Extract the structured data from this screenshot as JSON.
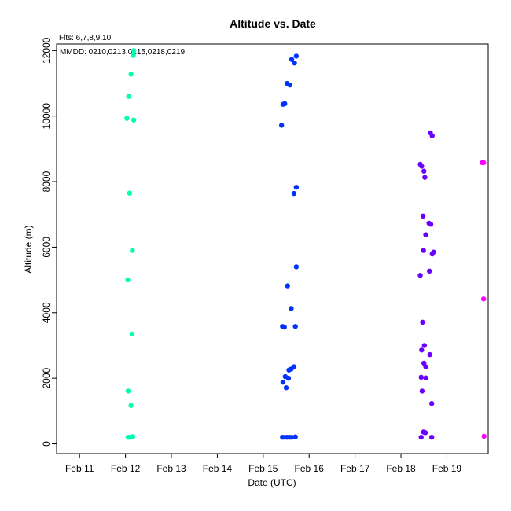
{
  "chart_data": {
    "type": "scatter",
    "title": "Altitude  vs. Date",
    "subtitle_flts": "Flts: 6,7,8,9,10",
    "annotation_mmdd": "MMDD: 0210,0213,0215,0218,0219",
    "xlabel": "Date (UTC)",
    "ylabel": "Altitude (m)",
    "x_unit": "days since Feb 11 00:00 UTC",
    "xlim": [
      -0.5,
      8.9
    ],
    "ylim": [
      -300,
      12200
    ],
    "x_ticks": [
      {
        "label": "Feb 11",
        "value": 0
      },
      {
        "label": "Feb 12",
        "value": 1
      },
      {
        "label": "Feb 13",
        "value": 2
      },
      {
        "label": "Feb 14",
        "value": 3
      },
      {
        "label": "Feb 15",
        "value": 4
      },
      {
        "label": "Feb 16",
        "value": 5
      },
      {
        "label": "Feb 17",
        "value": 6
      },
      {
        "label": "Feb 18",
        "value": 7
      },
      {
        "label": "Feb 19",
        "value": 8
      }
    ],
    "y_ticks": [
      0,
      2000,
      4000,
      6000,
      8000,
      10000,
      12000
    ],
    "grid": false,
    "legend": "none",
    "series": [
      {
        "color": "#00ffb0",
        "points": [
          [
            1.18,
            12000
          ],
          [
            1.17,
            11850
          ],
          [
            1.12,
            11280
          ],
          [
            1.07,
            10600
          ],
          [
            1.03,
            9930
          ],
          [
            1.18,
            9880
          ],
          [
            1.09,
            7650
          ],
          [
            1.15,
            5900
          ],
          [
            1.05,
            5000
          ],
          [
            1.14,
            3350
          ],
          [
            1.06,
            1610
          ],
          [
            1.12,
            1170
          ],
          [
            1.06,
            200
          ],
          [
            1.09,
            200
          ],
          [
            1.16,
            220
          ]
        ]
      },
      {
        "color": "#0033ff",
        "points": [
          [
            4.72,
            11830
          ],
          [
            4.62,
            11730
          ],
          [
            4.68,
            11620
          ],
          [
            4.52,
            11000
          ],
          [
            4.58,
            10950
          ],
          [
            4.47,
            10380
          ],
          [
            4.43,
            10360
          ],
          [
            4.4,
            9720
          ],
          [
            4.72,
            7830
          ],
          [
            4.67,
            7640
          ],
          [
            4.72,
            5400
          ],
          [
            4.53,
            4820
          ],
          [
            4.61,
            4130
          ],
          [
            4.42,
            3580
          ],
          [
            4.46,
            3560
          ],
          [
            4.7,
            3580
          ],
          [
            4.67,
            2350
          ],
          [
            4.61,
            2280
          ],
          [
            4.56,
            2250
          ],
          [
            4.48,
            2050
          ],
          [
            4.55,
            2000
          ],
          [
            4.43,
            1880
          ],
          [
            4.5,
            1710
          ],
          [
            4.42,
            200
          ],
          [
            4.47,
            200
          ],
          [
            4.52,
            200
          ],
          [
            4.57,
            200
          ],
          [
            4.62,
            200
          ],
          [
            4.7,
            210
          ]
        ]
      },
      {
        "color": "#6a00ff",
        "points": [
          [
            7.64,
            9490
          ],
          [
            7.68,
            9400
          ],
          [
            7.42,
            8530
          ],
          [
            7.45,
            8470
          ],
          [
            7.5,
            8320
          ],
          [
            7.52,
            8130
          ],
          [
            7.48,
            6950
          ],
          [
            7.61,
            6730
          ],
          [
            7.65,
            6700
          ],
          [
            7.54,
            6380
          ],
          [
            7.71,
            5850
          ],
          [
            7.68,
            5790
          ],
          [
            7.49,
            5900
          ],
          [
            7.62,
            5270
          ],
          [
            7.42,
            5140
          ],
          [
            7.47,
            3710
          ],
          [
            7.51,
            3000
          ],
          [
            7.45,
            2860
          ],
          [
            7.63,
            2720
          ],
          [
            7.5,
            2460
          ],
          [
            7.54,
            2350
          ],
          [
            7.44,
            2030
          ],
          [
            7.54,
            2010
          ],
          [
            7.46,
            1610
          ],
          [
            7.67,
            1230
          ],
          [
            7.49,
            360
          ],
          [
            7.53,
            340
          ],
          [
            7.44,
            200
          ],
          [
            7.67,
            200
          ]
        ]
      },
      {
        "color": "#ff00ff",
        "points": [
          [
            8.77,
            8580
          ],
          [
            8.8,
            8580
          ],
          [
            8.8,
            4420
          ],
          [
            8.81,
            230
          ]
        ]
      }
    ]
  }
}
